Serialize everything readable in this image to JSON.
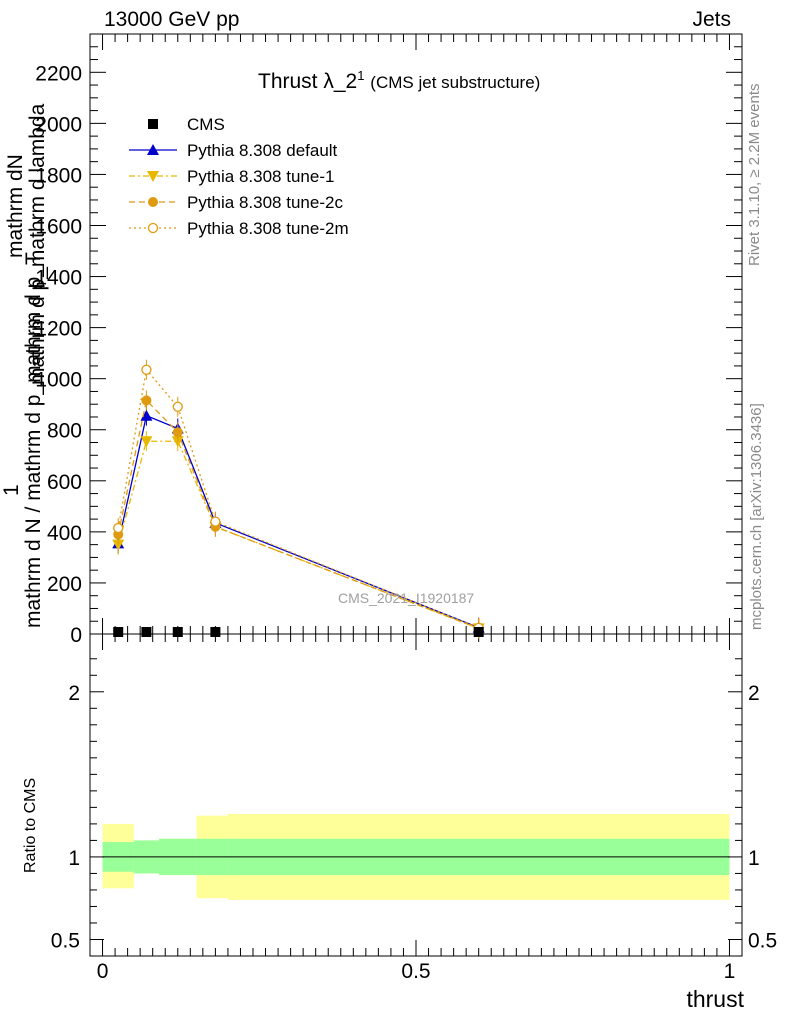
{
  "header": {
    "left": "13000 GeV pp",
    "right": "Jets"
  },
  "side_labels": {
    "rivet": "Rivet 3.1.10, ≥ 2.2M events",
    "mcplots": "mcplots.cern.ch [arXiv:1306.3436]"
  },
  "chart_data": [
    {
      "type": "line",
      "title": "Thrust λ_2",
      "title_superscript": "1",
      "subtitle": "(CMS jet substructure)",
      "watermark": "CMS_2021_I1920187",
      "ylabel_top": "1",
      "ylabel_fraction_numerator": "mathrm dN",
      "ylabel_fraction_numerator_2": "mathrm d p_mathrm d lambda",
      "ylabel_fraction_denominator": "mathrm d N / mathrm d p_mathrm d p_T",
      "xlim": [
        -0.02,
        1.02
      ],
      "ylim": [
        0,
        2350
      ],
      "yticks": [
        0,
        200,
        400,
        600,
        800,
        1000,
        1200,
        1400,
        1600,
        1800,
        2000,
        2200
      ],
      "series": [
        {
          "name": "CMS",
          "style": "data",
          "color": "#000000",
          "marker": "square",
          "x": [
            0.025,
            0.07,
            0.12,
            0.18,
            0.6
          ],
          "y": [
            2,
            4,
            3,
            2,
            0.5
          ]
        },
        {
          "name": "Pythia 8.308 default",
          "style": "solid",
          "color": "#0000cc",
          "marker": "triangle-up",
          "x": [
            0.025,
            0.07,
            0.12,
            0.18,
            0.6
          ],
          "y": [
            355,
            855,
            805,
            435,
            25
          ]
        },
        {
          "name": "Pythia 8.308 tune-1",
          "style": "dashdot",
          "color": "#e8b800",
          "marker": "triangle-down",
          "x": [
            0.025,
            0.07,
            0.12,
            0.18,
            0.6
          ],
          "y": [
            350,
            755,
            755,
            420,
            22
          ]
        },
        {
          "name": "Pythia 8.308 tune-2c",
          "style": "dashed",
          "color": "#e09a10",
          "marker": "circle-filled",
          "x": [
            0.025,
            0.07,
            0.12,
            0.18,
            0.6
          ],
          "y": [
            390,
            915,
            790,
            420,
            22
          ]
        },
        {
          "name": "Pythia 8.308 tune-2m",
          "style": "dotted",
          "color": "#e09a10",
          "marker": "circle-open",
          "x": [
            0.025,
            0.07,
            0.12,
            0.18,
            0.6
          ],
          "y": [
            415,
            1035,
            890,
            440,
            24
          ]
        }
      ]
    },
    {
      "type": "area",
      "ylabel": "Ratio to CMS",
      "xlabel": "thrust",
      "xlim": [
        -0.02,
        1.02
      ],
      "ylim": [
        0.4,
        2.35
      ],
      "yticks": [
        0.5,
        1,
        2
      ],
      "xticks": [
        0,
        0.5,
        1
      ],
      "bins": [
        {
          "x0": 0.0,
          "x1": 0.05,
          "inner": [
            0.91,
            1.09
          ],
          "outer": [
            0.81,
            1.2
          ]
        },
        {
          "x0": 0.05,
          "x1": 0.09,
          "inner": [
            0.9,
            1.1
          ],
          "outer": [
            0.9,
            1.1
          ]
        },
        {
          "x0": 0.09,
          "x1": 0.15,
          "inner": [
            0.89,
            1.11
          ],
          "outer": [
            0.89,
            1.11
          ]
        },
        {
          "x0": 0.15,
          "x1": 0.2,
          "inner": [
            0.89,
            1.11
          ],
          "outer": [
            0.75,
            1.25
          ]
        },
        {
          "x0": 0.2,
          "x1": 1.0,
          "inner": [
            0.89,
            1.11
          ],
          "outer": [
            0.74,
            1.26
          ]
        }
      ],
      "inner_color": "#99ff99",
      "outer_color": "#ffff99"
    }
  ]
}
